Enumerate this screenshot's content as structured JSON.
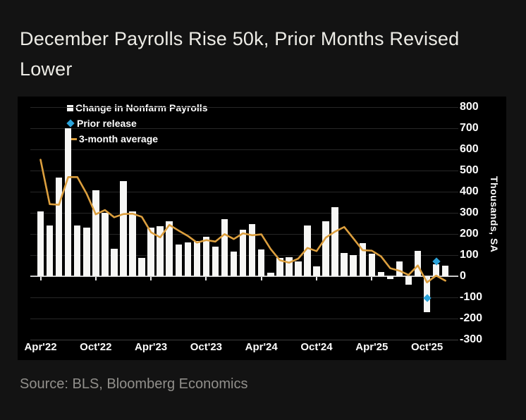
{
  "title": "December Payrolls Rise 50k, Prior Months Revised Lower",
  "source": "Source: BLS, Bloomberg Economics",
  "legend": [
    {
      "label": "Change in Nonfarm Payrolls",
      "marker": "square",
      "color": "#f7f7f5"
    },
    {
      "label": "Prior release",
      "marker": "diamond",
      "color": "#2ba3da"
    },
    {
      "label": "3-month average",
      "marker": "line",
      "color": "#dc9f3e"
    }
  ],
  "y_axis": {
    "title": "Thousands, SA",
    "ticks": [
      800,
      700,
      600,
      500,
      400,
      300,
      200,
      100,
      0,
      -100,
      -200,
      -300
    ]
  },
  "x_axis": {
    "tick_labels": [
      "Apr'22",
      "Oct'22",
      "Apr'23",
      "Oct'23",
      "Apr'24",
      "Oct'24",
      "Apr'25",
      "Oct'25"
    ],
    "tick_month_indices": [
      0,
      6,
      12,
      18,
      24,
      30,
      36,
      42
    ]
  },
  "chart_data": {
    "type": "bar",
    "title": "December Payrolls Rise 50k, Prior Months Revised Lower",
    "ylabel": "Thousands, SA",
    "ylim": [
      -300,
      800
    ],
    "grid": true,
    "legend_position": "top-left",
    "categories": [
      "Apr'22",
      "May'22",
      "Jun'22",
      "Jul'22",
      "Aug'22",
      "Sep'22",
      "Oct'22",
      "Nov'22",
      "Dec'22",
      "Jan'23",
      "Feb'23",
      "Mar'23",
      "Apr'23",
      "May'23",
      "Jun'23",
      "Jul'23",
      "Aug'23",
      "Sep'23",
      "Oct'23",
      "Nov'23",
      "Dec'23",
      "Jan'24",
      "Feb'24",
      "Mar'24",
      "Apr'24",
      "May'24",
      "Jun'24",
      "Jul'24",
      "Aug'24",
      "Sep'24",
      "Oct'24",
      "Nov'24",
      "Dec'24",
      "Jan'25",
      "Feb'25",
      "Mar'25",
      "Apr'25",
      "May'25",
      "Jun'25",
      "Jul'25",
      "Aug'25",
      "Sep'25",
      "Oct'25",
      "Nov'25",
      "Dec'25"
    ],
    "series": [
      {
        "name": "Change in Nonfarm Payrolls",
        "type": "bar",
        "color": "#f7f7f5",
        "values": [
          305,
          240,
          465,
          700,
          240,
          230,
          405,
          300,
          130,
          450,
          305,
          85,
          230,
          235,
          260,
          150,
          160,
          165,
          185,
          140,
          270,
          115,
          220,
          245,
          125,
          15,
          85,
          90,
          70,
          240,
          45,
          260,
          325,
          110,
          100,
          155,
          105,
          20,
          -15,
          70,
          -40,
          120,
          -170,
          55,
          50
        ]
      },
      {
        "name": "3-month average",
        "type": "line",
        "color": "#dc9f3e",
        "values": [
          550,
          340,
          337,
          468,
          468,
          390,
          292,
          312,
          278,
          293,
          295,
          280,
          207,
          183,
          242,
          215,
          190,
          158,
          170,
          163,
          198,
          175,
          202,
          193,
          197,
          128,
          75,
          63,
          82,
          133,
          118,
          182,
          210,
          232,
          178,
          122,
          120,
          93,
          37,
          25,
          5,
          50,
          -30,
          2,
          -22
        ]
      },
      {
        "name": "Prior release",
        "type": "scatter",
        "color": "#2ba3da",
        "points": [
          {
            "month": "Oct'25",
            "index": 42,
            "value": -105
          },
          {
            "month": "Nov'25",
            "index": 43,
            "value": 70
          }
        ]
      }
    ]
  },
  "colors": {
    "page_background": "#131313",
    "plot_background": "#000000",
    "bar": "#f7f7f5",
    "line": "#dc9f3e",
    "diamond": "#2ba3da",
    "grid": "#272727",
    "zero_line": "#c9c9c9",
    "axis_text": "#fdfdfd",
    "title_text": "#edece6",
    "source_text": "#918f8b"
  }
}
